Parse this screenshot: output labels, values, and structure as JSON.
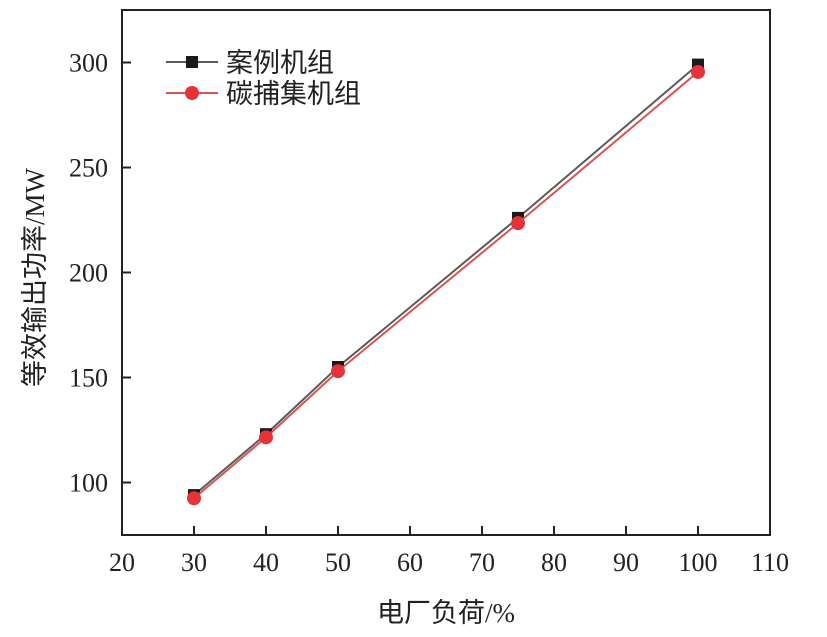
{
  "chart_data": {
    "type": "line",
    "xlabel": "电厂负荷/%",
    "ylabel": "等效输出功率/MW",
    "xlim": [
      20,
      110
    ],
    "ylim": [
      75,
      325
    ],
    "xticks": [
      20,
      30,
      40,
      50,
      60,
      70,
      80,
      90,
      100,
      110
    ],
    "yticks": [
      100,
      150,
      200,
      250,
      300
    ],
    "grid": false,
    "legend_position": "top-left",
    "x": [
      30,
      40,
      50,
      75,
      100
    ],
    "series": [
      {
        "name": "案例机组",
        "values": [
          94,
          123,
          155,
          226,
          299
        ],
        "color": "#5a5a5a",
        "marker": "square",
        "marker_color": "#1a1a1a"
      },
      {
        "name": "碳捕集机组",
        "values": [
          92.5,
          121.5,
          153,
          223.5,
          295.5
        ],
        "color": "#d9534f",
        "marker": "circle",
        "marker_color": "#e8323a"
      }
    ]
  }
}
